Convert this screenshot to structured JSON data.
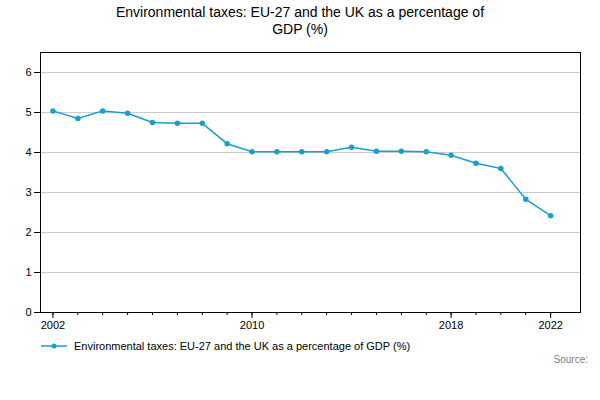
{
  "chart_data": {
    "type": "line",
    "title": "Environmental taxes: EU-27 and the UK as a percentage of\nGDP (%)",
    "x": [
      2002,
      2003,
      2004,
      2005,
      2006,
      2007,
      2008,
      2009,
      2010,
      2011,
      2012,
      2013,
      2014,
      2015,
      2016,
      2017,
      2018,
      2019,
      2020,
      2021,
      2022
    ],
    "series": [
      {
        "name": "Environmental taxes: EU-27 and the UK as a percentage of GDP (%)",
        "color": "#1a9ed0",
        "marker": "circle",
        "values": [
          5.04,
          4.85,
          5.04,
          4.98,
          4.75,
          4.73,
          4.73,
          4.22,
          4.02,
          4.02,
          4.02,
          4.02,
          4.13,
          4.03,
          4.03,
          4.02,
          3.93,
          3.73,
          3.6,
          2.83,
          2.42
        ]
      }
    ],
    "xlim": [
      2001.5,
      2023.2
    ],
    "xticks": [
      2002,
      2010,
      2018,
      2022
    ],
    "ylim": [
      0,
      6.5
    ],
    "yticks": [
      0,
      1,
      2,
      3,
      4,
      5,
      6
    ],
    "grid": "y",
    "legend": "bottom",
    "annotations": [
      "Source:"
    ]
  }
}
